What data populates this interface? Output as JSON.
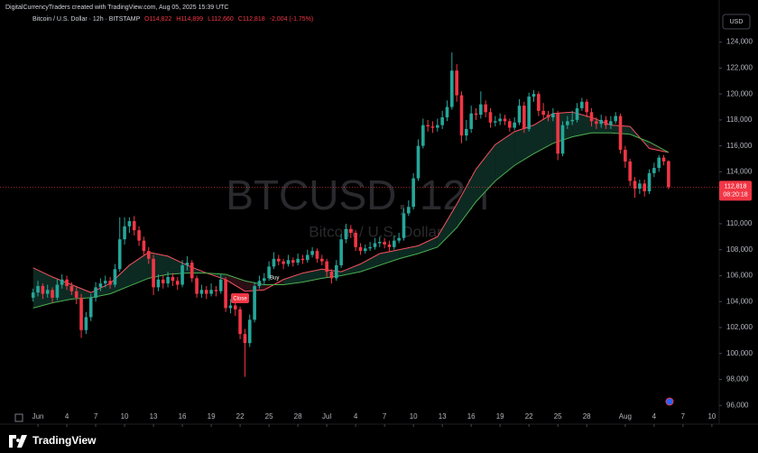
{
  "header": {
    "credit": "DigitalCurrencyTraders created with TradingView.com, Aug 05, 2025 15:39 UTC",
    "ohlc": [
      "O114,822",
      "H114,899",
      "L112,660",
      "C112,818",
      "-2,004 (-1.75%)"
    ],
    "currency": "USD",
    "watermark": "BTCUSD, 12h",
    "watermark_sub": "Bitcoin / U.S. Dollar",
    "brand": "TradingView"
  },
  "chart_data": {
    "type": "candlestick",
    "title": "Bitcoin / U.S. Dollar · 12h · BITSTAMP",
    "up_color": "#26a69a",
    "down_color": "#f23645",
    "x": [
      -0.5,
      0,
      0.5,
      1,
      1.5,
      2,
      2.5,
      3,
      3.5,
      4,
      4.5,
      5,
      5.5,
      6,
      6.5,
      7,
      7.5,
      8,
      8.5,
      9,
      9.5,
      10,
      10.5,
      11,
      11.5,
      12,
      12.5,
      13,
      13.5,
      14,
      14.5,
      15,
      15.5,
      16,
      16.5,
      17,
      17.5,
      18,
      18.5,
      19,
      19.5,
      20,
      20.5,
      21,
      21.5,
      22,
      22.5,
      23,
      23.5,
      24,
      24.5,
      25,
      25.5,
      26,
      26.5,
      27,
      27.5,
      28,
      28.5,
      29,
      29.5,
      30,
      30.5,
      31,
      31.5,
      32,
      32.5,
      33,
      33.5,
      34,
      34.5,
      35,
      35.5,
      36,
      36.5,
      37,
      37.5,
      38,
      38.5,
      39,
      39.5,
      40,
      40.5,
      41,
      41.5,
      42,
      42.5,
      43,
      43.5,
      44,
      44.5,
      45,
      45.5,
      46,
      46.5,
      47,
      47.5,
      48,
      48.5,
      49,
      49.5,
      50,
      50.5,
      51,
      51.5,
      52,
      52.5,
      53,
      53.5,
      54,
      54.5,
      55,
      55.5,
      56,
      56.5,
      57,
      57.5,
      58,
      58.5,
      59,
      59.5,
      60,
      60.5,
      61,
      61.5,
      62,
      62.5,
      63,
      63.5,
      64,
      64.5,
      65,
      65.5
    ],
    "open": [
      104300,
      104700,
      105200,
      104600,
      104900,
      104300,
      105300,
      105700,
      105200,
      104800,
      104300,
      101800,
      102800,
      104300,
      105100,
      105400,
      105600,
      105300,
      106500,
      108800,
      109800,
      110200,
      109500,
      108700,
      107900,
      107300,
      105100,
      105700,
      105400,
      105900,
      105600,
      105300,
      106800,
      107000,
      105800,
      104600,
      104900,
      104600,
      104900,
      104800,
      105700,
      103500,
      103700,
      103400,
      101500,
      100800,
      102600,
      105200,
      105600,
      105800,
      106700,
      107300,
      107100,
      106900,
      107200,
      107000,
      107300,
      107200,
      107600,
      107900,
      107300,
      107100,
      106300,
      105800,
      106800,
      108800,
      109600,
      109300,
      108200,
      107900,
      108100,
      108200,
      108500,
      108600,
      108400,
      108200,
      108700,
      108900,
      110800,
      111300,
      113500,
      116000,
      117600,
      117500,
      117400,
      117600,
      118200,
      119000,
      121800,
      119900,
      116800,
      117300,
      118500,
      118400,
      119200,
      118600,
      117800,
      117900,
      118100,
      117900,
      117400,
      117800,
      119100,
      117300,
      119800,
      120000,
      118700,
      118400,
      118200,
      118500,
      115400,
      117600,
      117900,
      118000,
      118900,
      119400,
      118600,
      117900,
      117700,
      118000,
      117600,
      117900,
      118300,
      115700,
      114800,
      113300,
      112700,
      113100,
      112500,
      113900,
      114300,
      115100,
      114822
    ],
    "high": [
      105000,
      105600,
      105400,
      105300,
      105100,
      105700,
      106100,
      106000,
      105500,
      105100,
      104600,
      103200,
      104600,
      105500,
      105800,
      106000,
      105900,
      106900,
      110500,
      110500,
      110500,
      110600,
      109800,
      109000,
      108200,
      107600,
      106100,
      106000,
      106300,
      106200,
      105900,
      107200,
      107500,
      107200,
      106000,
      105300,
      105200,
      105400,
      105200,
      106100,
      105900,
      104200,
      104000,
      103600,
      101900,
      103000,
      105500,
      106000,
      106200,
      107100,
      107800,
      107600,
      107300,
      107600,
      107400,
      107700,
      107600,
      108000,
      108200,
      108100,
      107600,
      107300,
      106500,
      107200,
      109200,
      110000,
      109900,
      109500,
      108500,
      108400,
      108600,
      108900,
      109000,
      108900,
      108700,
      109100,
      109300,
      111200,
      111800,
      113900,
      116500,
      118100,
      118000,
      117900,
      118100,
      118700,
      119500,
      123200,
      122300,
      120200,
      118000,
      119100,
      118900,
      120200,
      119500,
      118900,
      118300,
      118500,
      118400,
      118100,
      118200,
      119600,
      119400,
      120100,
      120300,
      120200,
      119300,
      118700,
      118900,
      118700,
      117900,
      118300,
      118700,
      119300,
      119700,
      119600,
      118900,
      118200,
      118400,
      118300,
      118300,
      118600,
      118500,
      116000,
      115000,
      113600,
      113400,
      113400,
      114200,
      114700,
      115300,
      115300,
      114899
    ],
    "low": [
      104000,
      104400,
      104200,
      104300,
      103900,
      104100,
      105000,
      104900,
      104500,
      103800,
      101200,
      101500,
      102500,
      104000,
      104800,
      105100,
      105000,
      105100,
      106300,
      108400,
      109300,
      109100,
      108300,
      107500,
      106900,
      104500,
      104800,
      105000,
      105100,
      105200,
      104900,
      105100,
      106400,
      105500,
      104300,
      104300,
      104200,
      104400,
      104400,
      104600,
      103200,
      103100,
      102900,
      101100,
      98200,
      100500,
      102400,
      105000,
      105300,
      105600,
      106500,
      106800,
      106500,
      106700,
      106700,
      106800,
      106900,
      107000,
      107400,
      107000,
      106800,
      105900,
      105400,
      105600,
      106600,
      108500,
      108900,
      107900,
      107600,
      107700,
      107900,
      108000,
      108200,
      108100,
      107800,
      108000,
      108500,
      108700,
      110600,
      111100,
      113300,
      115800,
      117100,
      117000,
      117100,
      117300,
      117900,
      118800,
      119400,
      116200,
      116400,
      117000,
      118000,
      118100,
      118200,
      117400,
      117500,
      117600,
      117600,
      117100,
      117200,
      117600,
      117000,
      117100,
      119400,
      118300,
      118000,
      117900,
      117900,
      114900,
      115200,
      117300,
      117600,
      117800,
      118700,
      118200,
      117500,
      117300,
      117400,
      117300,
      117300,
      117700,
      115400,
      114300,
      112900,
      112000,
      112300,
      112100,
      112300,
      113600,
      114000,
      114500,
      112660
    ],
    "close": [
      104700,
      105200,
      104600,
      104900,
      104300,
      105300,
      105700,
      105200,
      104800,
      104300,
      101800,
      102800,
      104300,
      105100,
      105400,
      105600,
      105300,
      106500,
      108800,
      109800,
      110200,
      109500,
      108700,
      107900,
      107300,
      105100,
      105700,
      105400,
      105900,
      105600,
      105300,
      106800,
      107000,
      105800,
      104600,
      104900,
      104600,
      104900,
      104800,
      105700,
      103500,
      103700,
      103400,
      101500,
      100800,
      102600,
      105200,
      105600,
      105800,
      106700,
      107300,
      107100,
      106900,
      107200,
      107000,
      107300,
      107200,
      107600,
      107900,
      107300,
      107100,
      106300,
      105800,
      106800,
      108800,
      109600,
      109300,
      108200,
      107900,
      108100,
      108200,
      108500,
      108600,
      108400,
      108200,
      108700,
      108900,
      110800,
      111300,
      113500,
      116000,
      117600,
      117500,
      117400,
      117600,
      118200,
      119000,
      121800,
      119900,
      116800,
      117300,
      118500,
      118400,
      119200,
      118600,
      117800,
      117900,
      118100,
      117900,
      117400,
      117800,
      119100,
      117300,
      119800,
      120000,
      118700,
      118400,
      118200,
      118500,
      115400,
      117600,
      117900,
      118000,
      118900,
      119400,
      118600,
      117900,
      117700,
      118000,
      117600,
      117900,
      118300,
      115700,
      114800,
      113300,
      112700,
      113100,
      112500,
      113900,
      114300,
      115100,
      114800,
      112818
    ],
    "series": [
      {
        "color": "#f7525f",
        "x": [
          -0.5,
          1.5,
          3.5,
          5.5,
          7.5,
          9.5,
          11.5,
          13.5,
          15.5,
          17.5,
          19.5,
          21.5,
          23.5,
          25.5,
          27.5,
          29.5,
          31.5,
          33.5,
          35.5,
          37.5,
          39.5,
          41.5,
          43.5,
          45.5,
          47.5,
          49.5,
          51.5,
          53.5,
          55.5,
          57.5,
          59.5,
          61.5,
          63.5,
          65.5
        ],
        "values": [
          106600,
          105900,
          105300,
          104700,
          105400,
          106800,
          107800,
          107500,
          106800,
          106200,
          105700,
          104800,
          104900,
          105700,
          106200,
          106500,
          106300,
          106900,
          107700,
          108000,
          108300,
          109000,
          111500,
          114200,
          116100,
          117100,
          117600,
          118500,
          118600,
          118200,
          117600,
          117500,
          115800,
          115500
        ]
      },
      {
        "color": "#4caf50",
        "x": [
          -0.5,
          1.5,
          3.5,
          5.5,
          7.5,
          9.5,
          11.5,
          13.5,
          15.5,
          17.5,
          19.5,
          21.5,
          23.5,
          25.5,
          27.5,
          29.5,
          31.5,
          33.5,
          35.5,
          37.5,
          39.5,
          41.5,
          43.5,
          45.5,
          47.5,
          49.5,
          51.5,
          53.5,
          55.5,
          57.5,
          59.5,
          61.5,
          63.5,
          65.5
        ],
        "values": [
          103500,
          103900,
          104200,
          104300,
          104600,
          105200,
          105800,
          106100,
          106200,
          106200,
          106100,
          105600,
          105300,
          105300,
          105500,
          105800,
          106000,
          106300,
          106800,
          107300,
          107700,
          108200,
          109700,
          111700,
          113300,
          114500,
          115400,
          116200,
          116700,
          117000,
          117000,
          116900,
          116300,
          115500
        ]
      }
    ],
    "fill_up": "#0c2a22",
    "fill_down": "#2a0f14",
    "last_price": {
      "value": 112818,
      "label": "112,818"
    },
    "countdown": "08:20:18",
    "annotations": [
      "Buy",
      "Close"
    ],
    "xlim": [
      -3.94,
      70.76
    ],
    "ylim": [
      95600,
      126200
    ],
    "grid": false,
    "xticks": [
      {
        "value": 0,
        "label": "Jun"
      },
      {
        "value": 3,
        "label": "4"
      },
      {
        "value": 6,
        "label": "7"
      },
      {
        "value": 9,
        "label": "10"
      },
      {
        "value": 12,
        "label": "13"
      },
      {
        "value": 15,
        "label": "16"
      },
      {
        "value": 18,
        "label": "19"
      },
      {
        "value": 21,
        "label": "22"
      },
      {
        "value": 24,
        "label": "25"
      },
      {
        "value": 27,
        "label": "28"
      },
      {
        "value": 30,
        "label": "Jul"
      },
      {
        "value": 33,
        "label": "4"
      },
      {
        "value": 36,
        "label": "7"
      },
      {
        "value": 39,
        "label": "10"
      },
      {
        "value": 42,
        "label": "13"
      },
      {
        "value": 45,
        "label": "16"
      },
      {
        "value": 48,
        "label": "19"
      },
      {
        "value": 51,
        "label": "22"
      },
      {
        "value": 54,
        "label": "25"
      },
      {
        "value": 57,
        "label": "28"
      },
      {
        "value": 61,
        "label": "Aug"
      },
      {
        "value": 64,
        "label": "4"
      },
      {
        "value": 67,
        "label": "7"
      },
      {
        "value": 70,
        "label": "10"
      }
    ],
    "yticks": [
      {
        "value": 96000,
        "label": "96,000"
      },
      {
        "value": 98000,
        "label": "98,000"
      },
      {
        "value": 100000,
        "label": "100,000"
      },
      {
        "value": 102000,
        "label": "102,000"
      },
      {
        "value": 104000,
        "label": "104,000"
      },
      {
        "value": 106000,
        "label": "106,000"
      },
      {
        "value": 108000,
        "label": "108,000"
      },
      {
        "value": 110000,
        "label": "110,000"
      },
      {
        "value": 112000,
        "label": "112,000"
      },
      {
        "value": 114000,
        "label": "114,000"
      },
      {
        "value": 116000,
        "label": "116,000"
      },
      {
        "value": 118000,
        "label": "118,000"
      },
      {
        "value": 120000,
        "label": "120,000"
      },
      {
        "value": 122000,
        "label": "122,000"
      },
      {
        "value": 124000,
        "label": "124,000"
      }
    ]
  }
}
